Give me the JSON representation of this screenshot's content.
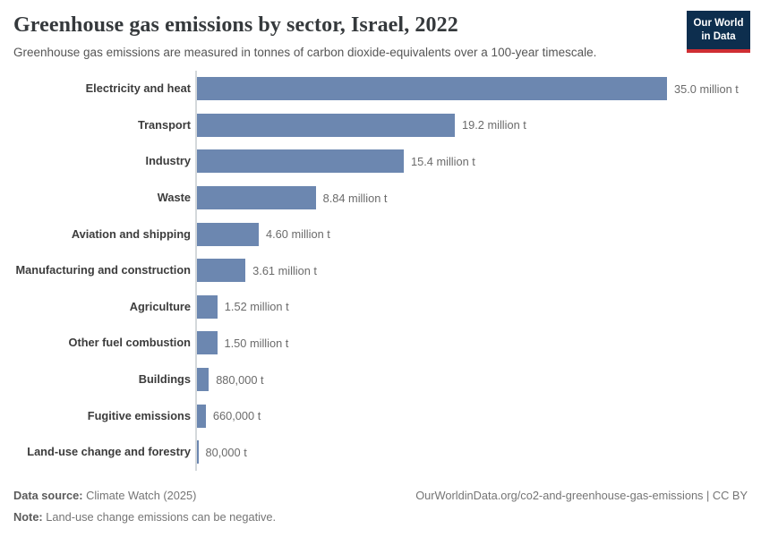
{
  "header": {
    "title": "Greenhouse gas emissions by sector, Israel, 2022",
    "subtitle": "Greenhouse gas emissions are measured in tonnes of carbon dioxide-equivalents over a 100-year timescale.",
    "logo": {
      "line1": "Our World",
      "line2": "in Data"
    }
  },
  "chart_data": {
    "type": "bar",
    "orientation": "horizontal",
    "title": "Greenhouse gas emissions by sector, Israel, 2022",
    "unit": "tonnes of CO2-equivalents",
    "categories": [
      "Electricity and heat",
      "Transport",
      "Industry",
      "Waste",
      "Aviation and shipping",
      "Manufacturing and construction",
      "Agriculture",
      "Other fuel combustion",
      "Buildings",
      "Fugitive emissions",
      "Land-use change and forestry"
    ],
    "values_million_t": [
      35.0,
      19.2,
      15.4,
      8.84,
      4.6,
      3.61,
      1.52,
      1.5,
      0.88,
      0.66,
      0.08
    ],
    "value_labels": [
      "35.0 million t",
      "19.2 million t",
      "15.4 million t",
      "8.84 million t",
      "4.60 million t",
      "3.61 million t",
      "1.52 million t",
      "1.50 million t",
      "880,000 t",
      "660,000 t",
      "80,000 t"
    ],
    "xlim": [
      0,
      35.0
    ],
    "grid": false,
    "legend": "none",
    "bar_color": "#6c87b0"
  },
  "footer": {
    "data_source_label": "Data source:",
    "data_source_value": " Climate Watch (2025)",
    "note_label": "Note:",
    "note_value": " Land-use change emissions can be negative.",
    "url": "OurWorldinData.org/co2-and-greenhouse-gas-emissions | CC BY"
  },
  "colors": {
    "bar": "#6c87b0",
    "axis_line": "#d4d8db",
    "title_text": "#35393c",
    "subtitle_text": "#555555",
    "value_text": "#6b6b6b",
    "logo_bg": "#0d2e4e",
    "logo_accent": "#cf2e33"
  }
}
